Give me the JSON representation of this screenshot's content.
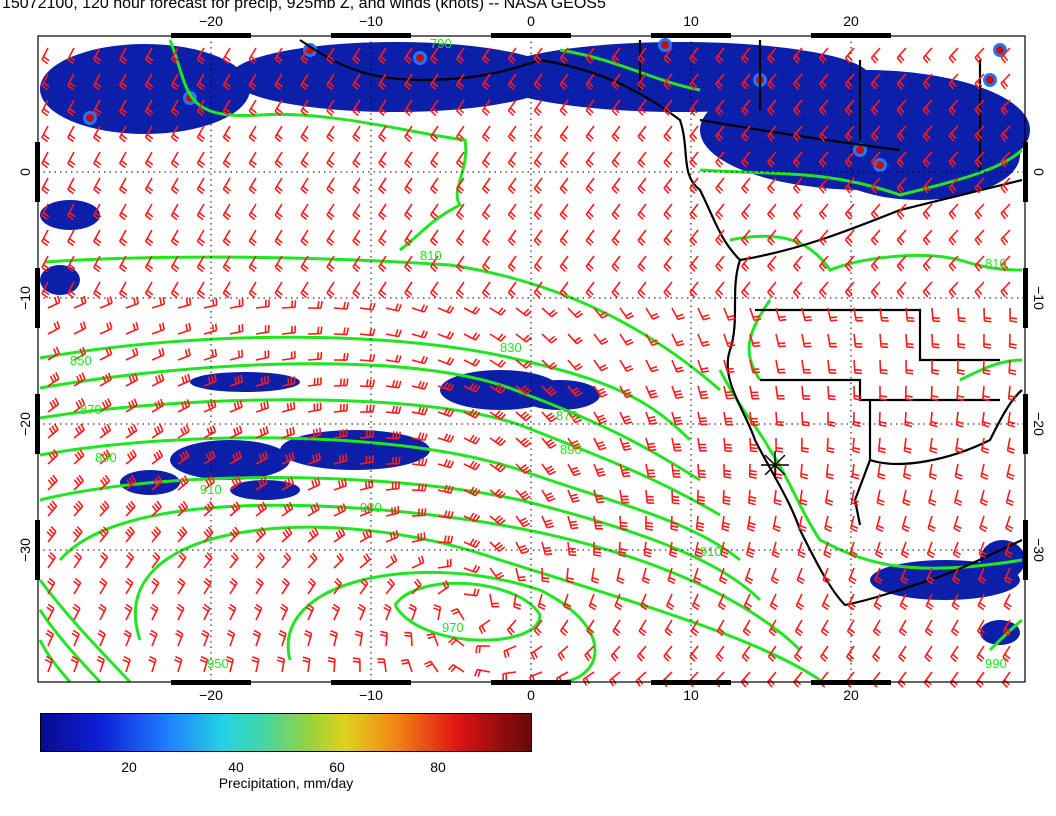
{
  "title": "15072100, 120 hour forecast for precip, 925mb Z, and winds (knots) -- NASA GEOS5",
  "map": {
    "lon_ticks_bottom": [
      "−20",
      "−10",
      "0",
      "10",
      "20"
    ],
    "lon_ticks_top": [
      "−20",
      "−10",
      "0",
      "10",
      "20"
    ],
    "lat_ticks_left": [
      "0",
      "−10",
      "−20",
      "−30"
    ],
    "lat_ticks_right": [
      "0",
      "−10",
      "−20",
      "−30"
    ],
    "contour_labels": [
      "790",
      "810",
      "830",
      "850",
      "870",
      "890",
      "910",
      "930",
      "950",
      "970",
      "990"
    ],
    "colors": {
      "contour": "#22e522",
      "wind_barb": "#ff1a1a",
      "coastline": "#000000",
      "precip_low": "#0b1fa8"
    }
  },
  "colorbar": {
    "ticks": [
      "20",
      "40",
      "60",
      "80"
    ],
    "label": "Precipitation, mm/day",
    "min": 0,
    "max": 100
  }
}
